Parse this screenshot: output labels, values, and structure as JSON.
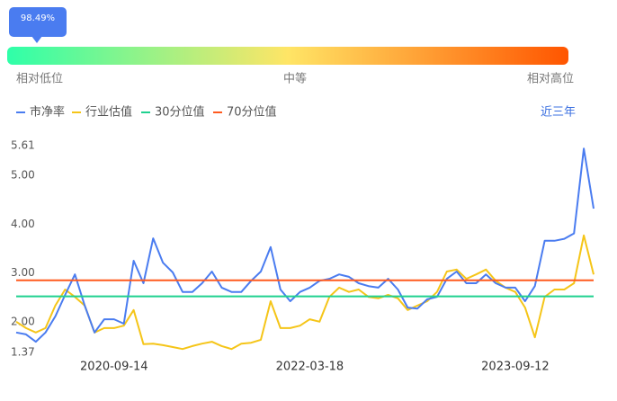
{
  "gauge": {
    "tooltip": "98.49%",
    "low_label": "相对低位",
    "mid_label": "中等",
    "high_label": "相对高位"
  },
  "range_button": "近三年",
  "chart_data": {
    "type": "line",
    "categories": [
      null,
      null,
      null,
      null,
      null,
      null,
      null,
      null,
      null,
      null,
      "2020-09-14",
      null,
      null,
      null,
      null,
      null,
      null,
      null,
      null,
      null,
      null,
      null,
      null,
      null,
      null,
      null,
      null,
      null,
      null,
      null,
      "2022-03-18",
      null,
      null,
      null,
      null,
      null,
      null,
      null,
      null,
      null,
      null,
      null,
      null,
      null,
      null,
      null,
      null,
      null,
      null,
      null,
      null,
      "2023-09-12",
      null,
      null,
      null,
      null,
      null,
      null,
      null,
      null
    ],
    "series": [
      {
        "name": "市净率",
        "color": "#4a7cf0",
        "values": [
          1.78,
          1.74,
          1.59,
          1.78,
          2.11,
          2.55,
          2.97,
          2.33,
          1.78,
          2.05,
          2.05,
          1.96,
          3.25,
          2.79,
          3.71,
          3.21,
          3.01,
          2.61,
          2.61,
          2.79,
          3.03,
          2.7,
          2.61,
          2.61,
          2.84,
          3.03,
          3.53,
          2.66,
          2.42,
          2.61,
          2.7,
          2.84,
          2.88,
          2.97,
          2.92,
          2.79,
          2.73,
          2.7,
          2.88,
          2.66,
          2.29,
          2.27,
          2.46,
          2.51,
          2.88,
          3.03,
          2.79,
          2.79,
          2.97,
          2.79,
          2.7,
          2.7,
          2.42,
          2.73,
          3.66,
          3.66,
          3.7,
          3.81,
          5.55,
          4.32
        ]
      },
      {
        "name": "行业估值",
        "color": "#f5c518",
        "values": [
          2.0,
          1.87,
          1.78,
          1.87,
          2.33,
          2.66,
          2.51,
          2.33,
          1.78,
          1.87,
          1.87,
          1.92,
          2.24,
          1.54,
          1.55,
          1.52,
          1.48,
          1.44,
          1.5,
          1.55,
          1.59,
          1.5,
          1.44,
          1.55,
          1.57,
          1.63,
          2.42,
          1.87,
          1.87,
          1.92,
          2.05,
          2.0,
          2.51,
          2.7,
          2.61,
          2.66,
          2.51,
          2.48,
          2.55,
          2.48,
          2.24,
          2.33,
          2.42,
          2.61,
          3.03,
          3.07,
          2.88,
          2.97,
          3.07,
          2.84,
          2.7,
          2.61,
          2.29,
          1.68,
          2.51,
          2.66,
          2.66,
          2.79,
          3.77,
          2.97
        ]
      },
      {
        "name": "30分位值",
        "color": "#1fd18f",
        "value": 2.52
      },
      {
        "name": "70分位值",
        "color": "#ff5a1f",
        "value": 2.85
      }
    ],
    "ylim": [
      1.37,
      5.61
    ],
    "yticks": [
      1.37,
      {
        "value": 2,
        "label": "2.00"
      },
      {
        "value": 3,
        "label": "3.00"
      },
      {
        "value": 4,
        "label": "4.00"
      },
      {
        "value": 5,
        "label": "5.00"
      },
      5.61
    ],
    "grid": false
  }
}
